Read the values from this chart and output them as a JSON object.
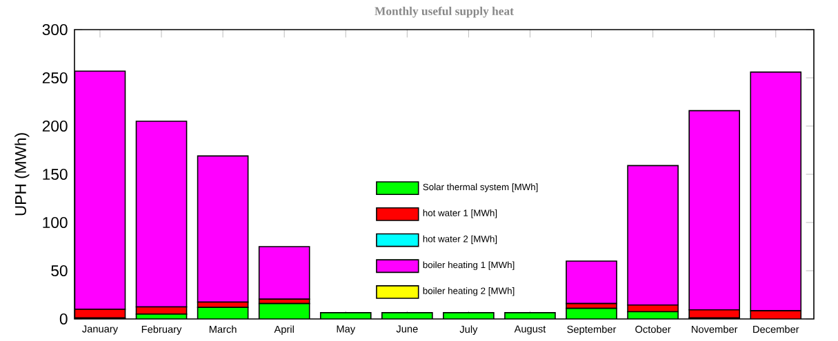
{
  "chart_data": {
    "type": "bar",
    "stacked": true,
    "title": "Monthly useful supply heat",
    "ylabel": "UPH (MWh)",
    "categories": [
      "January",
      "February",
      "March",
      "April",
      "May",
      "June",
      "July",
      "August",
      "September",
      "October",
      "November",
      "December"
    ],
    "series": [
      {
        "name": "Solar thermal system [MWh]",
        "color": "#00ff00",
        "values": [
          1,
          5,
          12,
          16,
          6.5,
          6.5,
          6.5,
          6.5,
          11,
          7.5,
          1,
          0
        ]
      },
      {
        "name": "hot water 1 [MWh]",
        "color": "#ff0000",
        "values": [
          9,
          7.5,
          5.5,
          4.5,
          0,
          0,
          0,
          0,
          5,
          7,
          8.5,
          8.5
        ]
      },
      {
        "name": "hot water 2 [MWh]",
        "color": "#00ffff",
        "values": [
          0,
          0,
          0,
          0,
          0,
          0,
          0,
          0,
          0,
          0,
          0,
          0
        ]
      },
      {
        "name": "boiler heating 1 [MWh]",
        "color": "#ff00ff",
        "values": [
          247,
          192.5,
          151.5,
          54.5,
          0,
          0,
          0,
          0,
          44,
          144.5,
          206.5,
          247.5
        ]
      },
      {
        "name": "boiler heating 2 [MWh]",
        "color": "#ffff00",
        "values": [
          0,
          0,
          0,
          0,
          0,
          0,
          0,
          0,
          0,
          0,
          0,
          0
        ]
      }
    ],
    "ylim": [
      0,
      300
    ],
    "yticks": [
      0,
      50,
      100,
      150,
      200,
      250,
      300
    ],
    "legend": "bottom"
  }
}
